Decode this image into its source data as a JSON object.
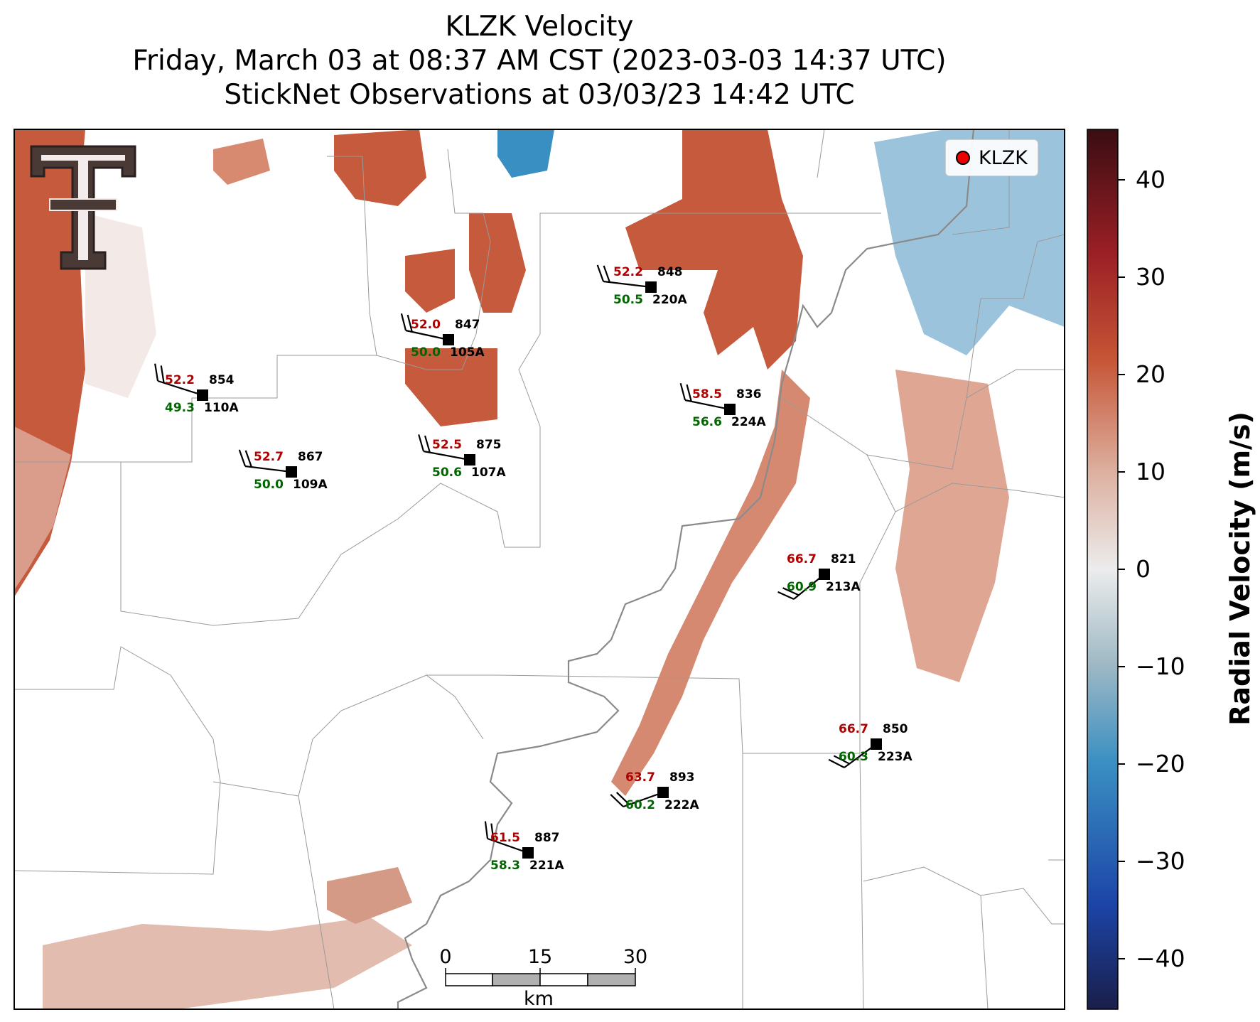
{
  "title": {
    "line1": "KLZK Velocity",
    "line2": "Friday, March 03 at 08:37 AM CST (2023-03-03 14:37 UTC)",
    "line3": "StickNet Observations at 03/03/23 14:42 UTC"
  },
  "legend": {
    "label": "KLZK",
    "marker_color": "#ee0000"
  },
  "colorbar": {
    "label": "Radial Velocity (m/s)",
    "ticks": [
      "40",
      "30",
      "20",
      "10",
      "0",
      "−10",
      "−20",
      "−30",
      "−40"
    ],
    "range": [
      -45,
      45
    ],
    "colors": [
      "#f0e8ea",
      "#ddb0a0",
      "#c65435",
      "#9a1f25",
      "#3a0d12"
    ],
    "neg_colors": [
      "#e6e6e6",
      "#9db8c4",
      "#3a8fc2",
      "#1c45a8",
      "#1a1e4a"
    ]
  },
  "scale_bar": {
    "ticks": [
      "0",
      "15",
      "30"
    ],
    "unit": "km"
  },
  "logo": {
    "name": "Texas Tech double-T logo"
  },
  "observations": [
    {
      "gust": "52.2",
      "wind": "49.3",
      "pressure": "854",
      "station": "110A"
    },
    {
      "gust": "52.7",
      "wind": "50.0",
      "pressure": "867",
      "station": "109A"
    },
    {
      "gust": "52.0",
      "wind": "50.0",
      "pressure": "847",
      "station": "105A"
    },
    {
      "gust": "52.5",
      "wind": "50.6",
      "pressure": "875",
      "station": "107A"
    },
    {
      "gust": "52.2",
      "wind": "50.5",
      "pressure": "848",
      "station": "220A"
    },
    {
      "gust": "58.5",
      "wind": "56.6",
      "pressure": "836",
      "station": "224A"
    },
    {
      "gust": "66.7",
      "wind": "60.9",
      "pressure": "821",
      "station": "213A"
    },
    {
      "gust": "66.7",
      "wind": "60.3",
      "pressure": "850",
      "station": "223A"
    },
    {
      "gust": "63.7",
      "wind": "60.2",
      "pressure": "893",
      "station": "222A"
    },
    {
      "gust": "61.5",
      "wind": "58.3",
      "pressure": "887",
      "station": "221A"
    }
  ]
}
